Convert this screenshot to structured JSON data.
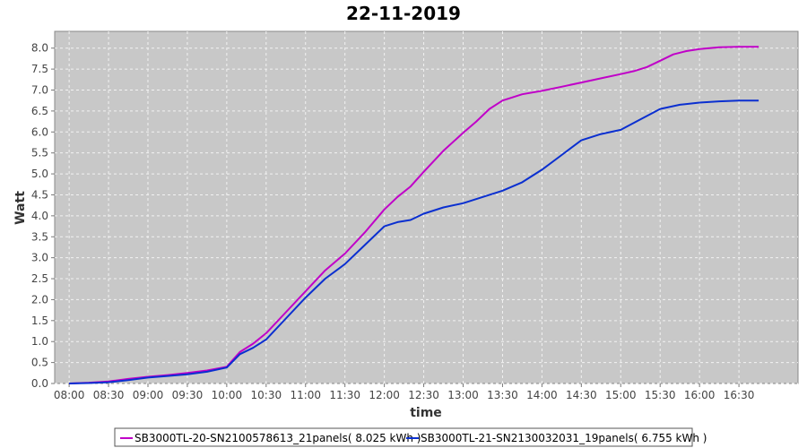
{
  "chart_data": {
    "type": "line",
    "title": "22-11-2019",
    "xlabel": "time",
    "ylabel": "Watt",
    "ylim": [
      0,
      8.4
    ],
    "xlim": [
      "07:49",
      "17:15"
    ],
    "yticks": [
      "0.0",
      "0.5",
      "1.0",
      "1.5",
      "2.0",
      "2.5",
      "3.0",
      "3.5",
      "4.0",
      "4.5",
      "5.0",
      "5.5",
      "6.0",
      "6.5",
      "7.0",
      "7.5",
      "8.0"
    ],
    "xticks": [
      "08:00",
      "08:30",
      "09:00",
      "09:30",
      "10:00",
      "10:30",
      "11:00",
      "11:30",
      "12:00",
      "12:30",
      "13:00",
      "13:30",
      "14:00",
      "14:30",
      "15:00",
      "15:30",
      "16:00",
      "16:30"
    ],
    "grid": true,
    "legend_position": "bottom",
    "series": [
      {
        "name": "SB3000TL-20-SN2100578613_21panels",
        "legend_label": "SB3000TL-20-SN2100578613_21panels( 8.025 kWh )",
        "color": "#c000c8",
        "x": [
          "08:00",
          "08:15",
          "08:30",
          "08:45",
          "09:00",
          "09:15",
          "09:30",
          "09:45",
          "10:00",
          "10:10",
          "10:20",
          "10:30",
          "10:45",
          "11:00",
          "11:15",
          "11:30",
          "11:45",
          "12:00",
          "12:10",
          "12:20",
          "12:30",
          "12:45",
          "13:00",
          "13:10",
          "13:20",
          "13:30",
          "13:45",
          "14:00",
          "14:15",
          "14:30",
          "14:45",
          "15:00",
          "15:10",
          "15:20",
          "15:30",
          "15:40",
          "15:50",
          "16:00",
          "16:15",
          "16:30",
          "16:45"
        ],
        "values": [
          0.0,
          0.02,
          0.05,
          0.11,
          0.16,
          0.2,
          0.25,
          0.31,
          0.4,
          0.75,
          0.95,
          1.2,
          1.7,
          2.2,
          2.7,
          3.1,
          3.6,
          4.15,
          4.45,
          4.7,
          5.05,
          5.55,
          5.98,
          6.25,
          6.55,
          6.75,
          6.9,
          6.98,
          7.08,
          7.18,
          7.28,
          7.38,
          7.45,
          7.55,
          7.7,
          7.85,
          7.93,
          7.98,
          8.02,
          8.03,
          8.03
        ]
      },
      {
        "name": "SB3000TL-21-SN2130032031_19panels",
        "legend_label": "SB3000TL-21-SN2130032031_19panels( 6.755 kWh )",
        "color": "#0a2fd0",
        "x": [
          "08:00",
          "08:15",
          "08:30",
          "08:45",
          "09:00",
          "09:15",
          "09:30",
          "09:45",
          "10:00",
          "10:10",
          "10:20",
          "10:30",
          "10:45",
          "11:00",
          "11:15",
          "11:30",
          "11:45",
          "12:00",
          "12:10",
          "12:20",
          "12:30",
          "12:45",
          "13:00",
          "13:15",
          "13:30",
          "13:45",
          "14:00",
          "14:15",
          "14:30",
          "14:45",
          "15:00",
          "15:15",
          "15:30",
          "15:45",
          "16:00",
          "16:15",
          "16:30",
          "16:45"
        ],
        "values": [
          0.0,
          0.01,
          0.03,
          0.08,
          0.14,
          0.18,
          0.22,
          0.28,
          0.38,
          0.7,
          0.85,
          1.05,
          1.55,
          2.05,
          2.5,
          2.85,
          3.3,
          3.75,
          3.85,
          3.9,
          4.05,
          4.2,
          4.3,
          4.45,
          4.6,
          4.8,
          5.1,
          5.45,
          5.8,
          5.95,
          6.05,
          6.3,
          6.55,
          6.65,
          6.7,
          6.73,
          6.75,
          6.75
        ]
      }
    ]
  }
}
